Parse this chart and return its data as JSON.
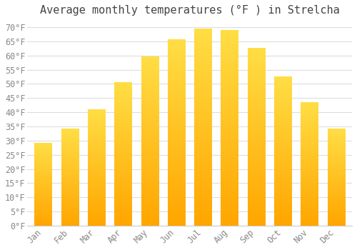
{
  "title": "Average monthly temperatures (°F ) in Strelcha",
  "months": [
    "Jan",
    "Feb",
    "Mar",
    "Apr",
    "May",
    "Jun",
    "Jul",
    "Aug",
    "Sep",
    "Oct",
    "Nov",
    "Dec"
  ],
  "values": [
    29.0,
    34.0,
    41.0,
    50.5,
    59.5,
    65.5,
    69.5,
    69.0,
    62.5,
    52.5,
    43.5,
    34.0
  ],
  "bar_color_bottom": "#FFA500",
  "bar_color_top": "#FFD700",
  "background_color": "#FFFFFF",
  "grid_color": "#DDDDDD",
  "ylim": [
    0,
    72
  ],
  "yticks": [
    0,
    5,
    10,
    15,
    20,
    25,
    30,
    35,
    40,
    45,
    50,
    55,
    60,
    65,
    70
  ],
  "title_fontsize": 11,
  "tick_fontsize": 8.5,
  "tick_color": "#888888",
  "title_color": "#444444",
  "font_family": "monospace",
  "bar_width": 0.65
}
